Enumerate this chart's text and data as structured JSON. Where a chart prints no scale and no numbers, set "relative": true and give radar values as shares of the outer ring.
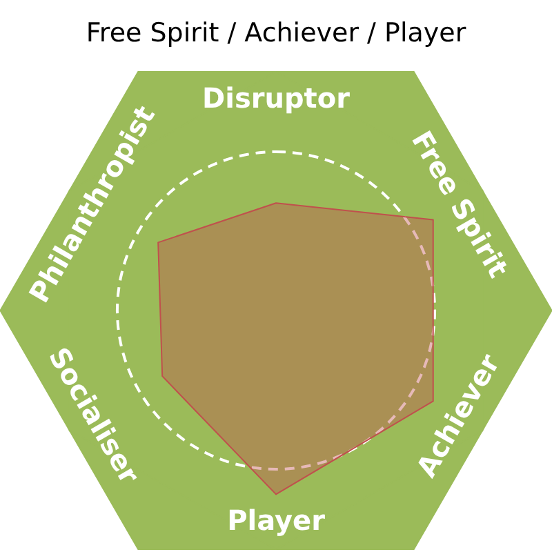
{
  "chart_data": {
    "type": "radar",
    "title": "Free Spirit / Achiever / Player",
    "categories": [
      "Disruptor",
      "Free Spirit",
      "Achiever",
      "Player",
      "Socialiser",
      "Philanthropist"
    ],
    "relative": true,
    "series": [
      {
        "color": "#c0504d",
        "values": [
          0.45,
          0.76,
          0.76,
          0.77,
          0.55,
          0.57
        ]
      }
    ]
  }
}
